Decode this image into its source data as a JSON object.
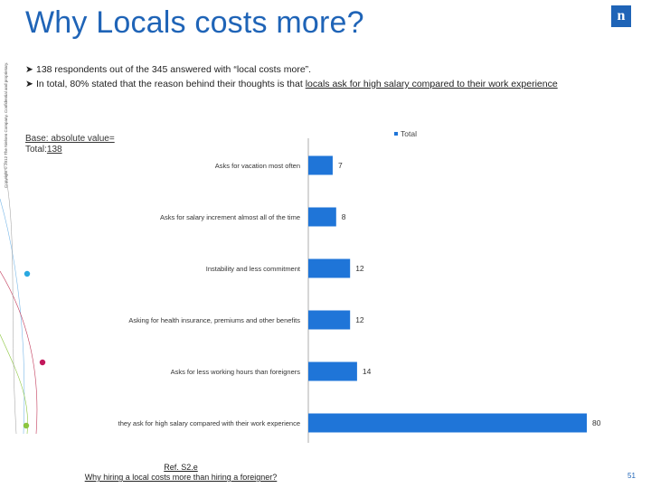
{
  "copyright": "Copyright © 2012 The Nielsen Company. Confidential and proprietary.",
  "title": "Why Locals costs more?",
  "logo_text": "n",
  "bullets": [
    {
      "text": "138 respondents out of the 345 answered with “local costs more”."
    },
    {
      "text_before": "In total, 80% stated that the reason behind their thoughts is that ",
      "text_underlined": "locals ask for high salary compared to their work experience"
    }
  ],
  "base": {
    "line1": "Base:  absolute  value=",
    "line2_label": "Total:",
    "line2_value": "138"
  },
  "ref": {
    "line1": "Ref. S2.e",
    "line2": "Why hiring a local costs more than hiring a foreigner?"
  },
  "page_number": "51",
  "colors": {
    "bar": "#1f75d8",
    "title": "#1f64b7"
  },
  "chart_data": {
    "type": "bar",
    "orientation": "horizontal",
    "categories": [
      "Asks for vacation most often",
      "Asks for salary increment almost all of the time",
      "Instability and less commitment",
      "Asking for health insurance, premiums and other benefits",
      "Asks for less working hours than foreigners",
      "they ask for high salary compared with their work experience"
    ],
    "series": [
      {
        "name": "Total",
        "values": [
          7,
          8,
          12,
          12,
          14,
          80
        ]
      }
    ],
    "legend": "top-right",
    "grid": false
  }
}
